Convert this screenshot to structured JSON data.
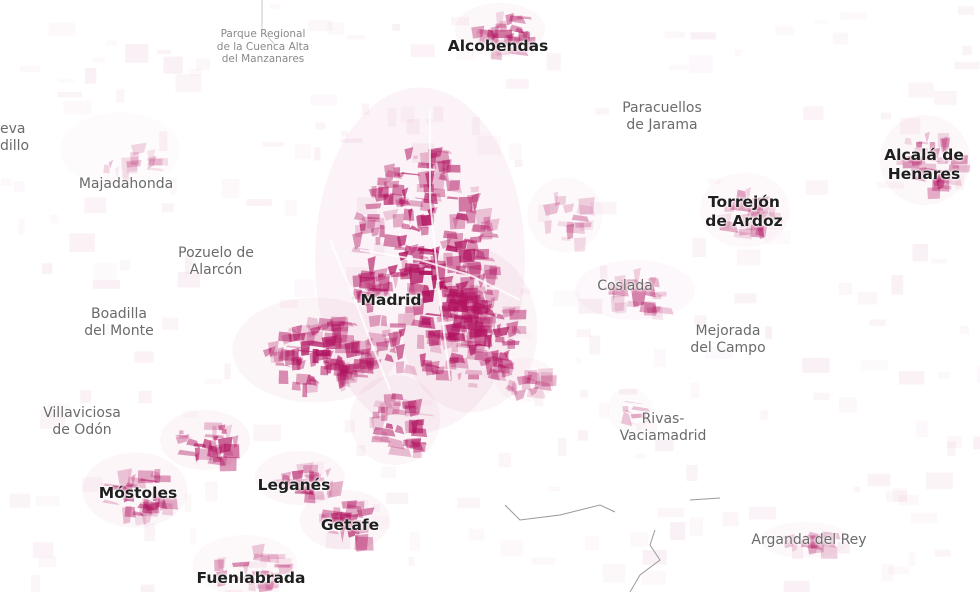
{
  "map": {
    "accent_color": "#b0125f",
    "background_color": "#ffffff",
    "labels": {
      "alcobendas": "Alcobendas",
      "parque_line1": "Parque Regional",
      "parque_line2": "de la Cuenca Alta",
      "parque_line3": "del Manzanares",
      "paracuellos_line1": "Paracuellos",
      "paracuellos_line2": "de Jarama",
      "nueva_baztan_line1": "eva",
      "nueva_baztan_line2": "dillo",
      "majadahonda": "Majadahonda",
      "alcala_line1": "Alcalá de",
      "alcala_line2": "Henares",
      "torrejon_line1": "Torrejón",
      "torrejon_line2": "de Ardoz",
      "pozuelo_line1": "Pozuelo de",
      "pozuelo_line2": "Alarcón",
      "madrid": "Madrid",
      "coslada": "Coslada",
      "boadilla_line1": "Boadilla",
      "boadilla_line2": "del Monte",
      "mejorada_line1": "Mejorada",
      "mejorada_line2": "del Campo",
      "villaviciosa_line1": "Villaviciosa",
      "villaviciosa_line2": "de Odón",
      "rivas_line1": "Rivas-",
      "rivas_line2": "Vaciamadrid",
      "mostoles": "Móstoles",
      "leganes": "Leganés",
      "getafe": "Getafe",
      "arganda": "Arganda del Rey",
      "fuenlabrada": "Fuenlabrada"
    }
  }
}
